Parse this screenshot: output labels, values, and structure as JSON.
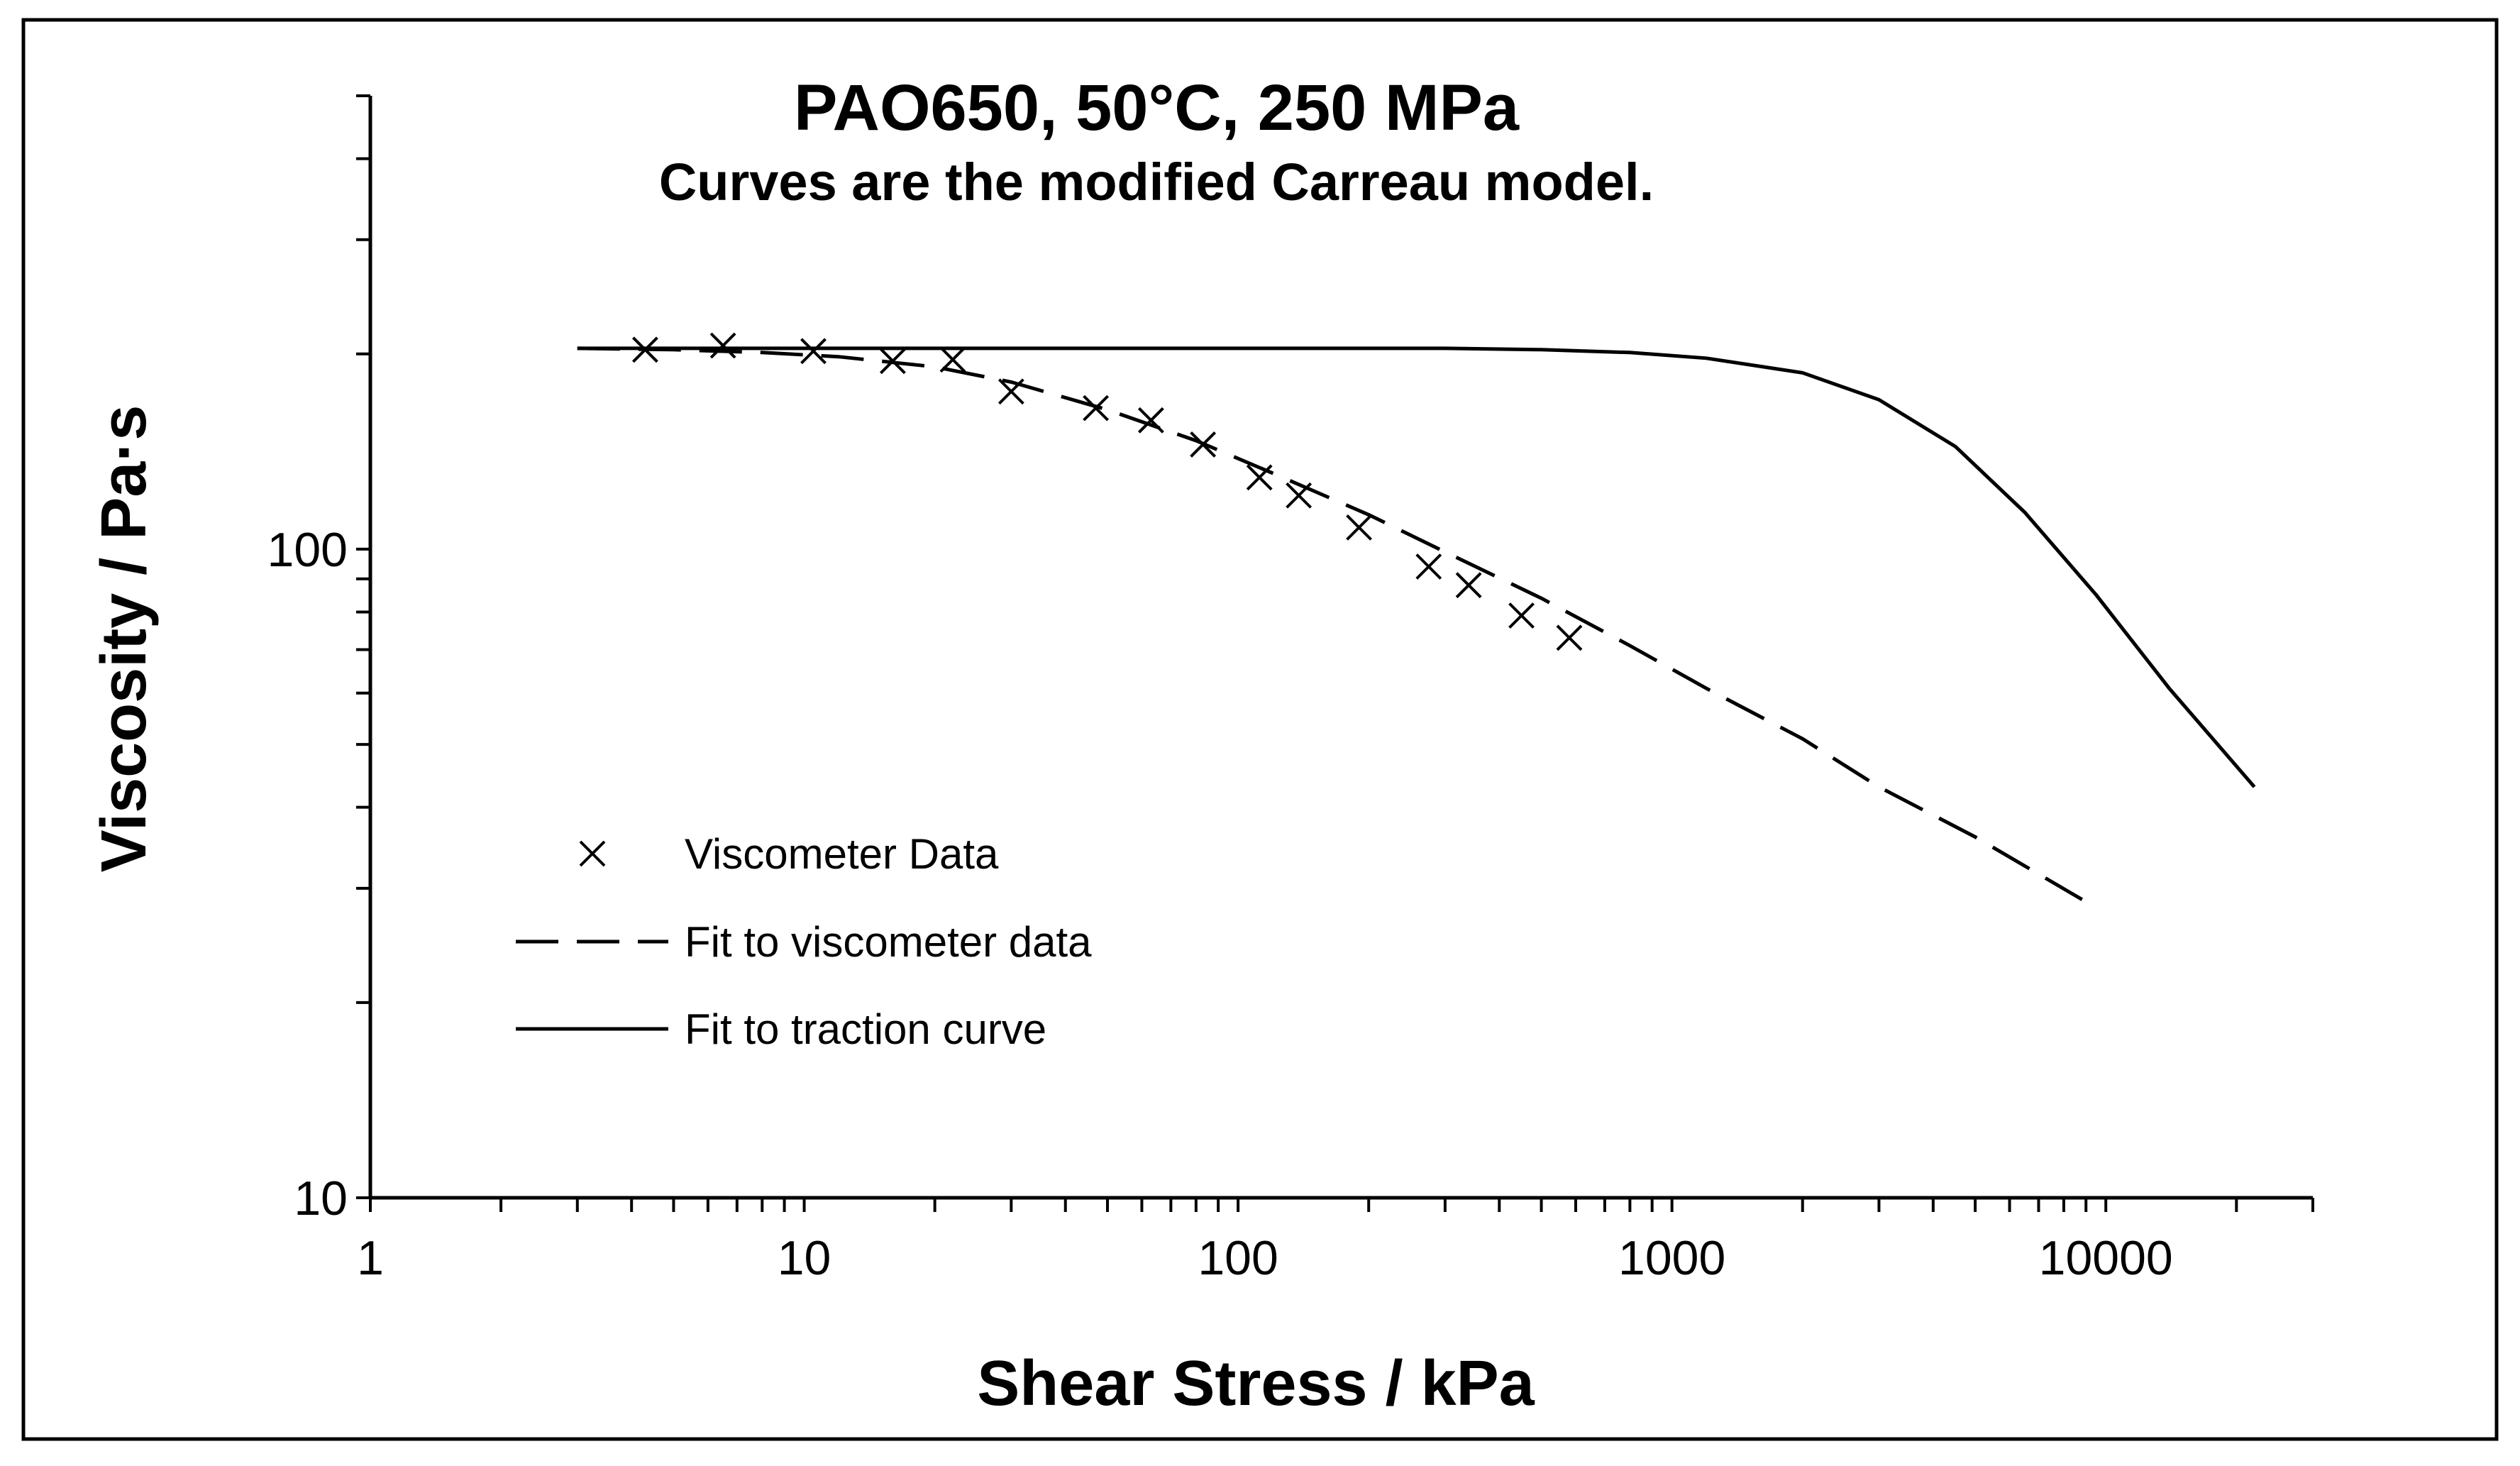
{
  "chart_data": {
    "type": "scatter",
    "title": "PAO650, 50°C, 250 MPa",
    "subtitle": "Curves are the modified Carreau model.",
    "xlabel": "Shear Stress / kPa",
    "ylabel": "Viscosity / Pa·s",
    "xscale": "log",
    "yscale": "log",
    "xlim": [
      1,
      30000
    ],
    "ylim": [
      10,
      500
    ],
    "x_tick_labels": [
      "1",
      "10",
      "100",
      "1000",
      "10000"
    ],
    "y_tick_labels": [
      "10",
      "100"
    ],
    "grid": false,
    "legend_position": "bottom-left",
    "series": [
      {
        "name": "Viscometer Data",
        "style": "x-markers",
        "x": [
          4.3,
          6.5,
          10.5,
          16,
          22,
          30,
          47,
          63,
          83,
          112,
          138,
          190,
          275,
          340,
          450,
          580
        ],
        "y": [
          203,
          206,
          202,
          195,
          196,
          175,
          165,
          158,
          145,
          129,
          121,
          108,
          94,
          88,
          79,
          73
        ]
      },
      {
        "name": "Fit to viscometer data",
        "style": "dashed-line",
        "x": [
          3,
          5,
          8,
          12,
          20,
          30,
          50,
          80,
          120,
          200,
          300,
          500,
          800,
          1200,
          2000,
          3000,
          5000,
          9500
        ],
        "y": [
          204,
          203,
          201,
          198,
          191,
          181,
          164,
          147,
          131,
          113,
          99,
          84,
          71,
          61,
          51,
          43,
          36,
          28
        ]
      },
      {
        "name": "Fit to traction curve",
        "style": "solid-line",
        "x": [
          3,
          10,
          50,
          100,
          300,
          500,
          800,
          1200,
          2000,
          3000,
          4500,
          6500,
          9500,
          14000,
          22000
        ],
        "y": [
          204,
          204,
          204,
          204,
          204,
          203,
          201,
          197,
          187,
          170,
          144,
          114,
          85,
          61,
          43
        ]
      }
    ]
  }
}
